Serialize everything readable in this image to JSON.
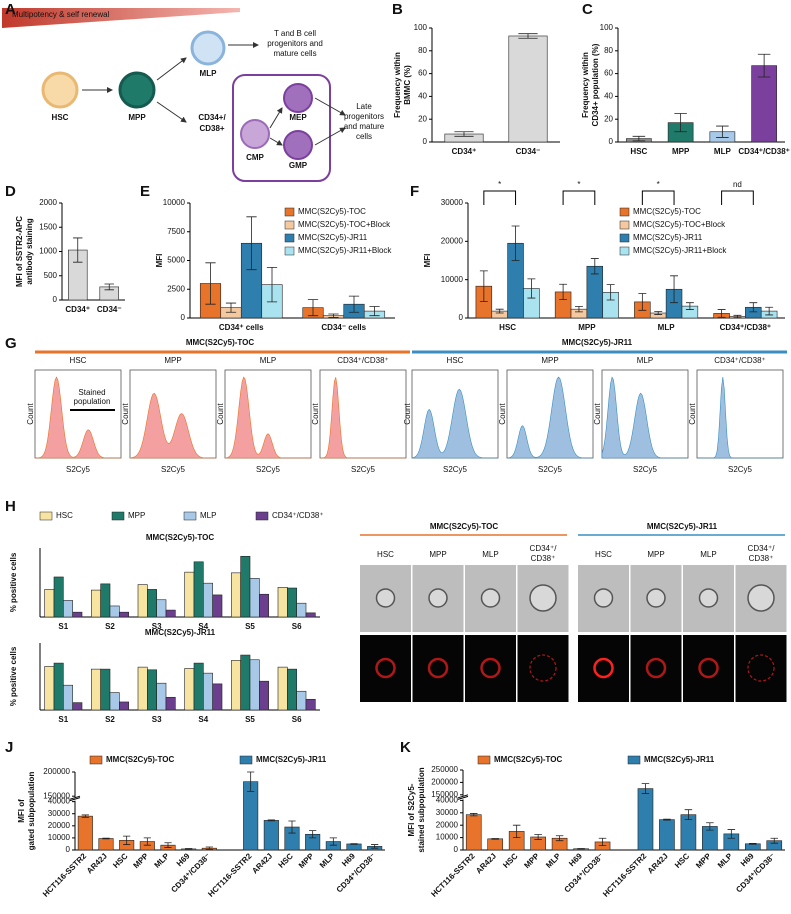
{
  "panel_labels": [
    "A",
    "B",
    "C",
    "D",
    "E",
    "F",
    "G",
    "H",
    "J",
    "K"
  ],
  "diagram": {
    "gradient_label": "Multipotency & self renewal",
    "hsc": "HSC",
    "mpp": "MPP",
    "mlp": "MLP",
    "mlp_fate": [
      "T and B cell",
      "progenitors and",
      "mature cells"
    ],
    "cd34_cd38": [
      "CD34+/",
      "CD38+"
    ],
    "cmp": "CMP",
    "mep": "MEP",
    "gmp": "GMP",
    "late_fate": [
      "Late",
      "progenitors",
      "and mature",
      "cells"
    ]
  },
  "chart_data": [
    {
      "type": "bar",
      "ylabel": [
        "Frequency within",
        "BMMC (%)"
      ],
      "categories": [
        "CD34⁺",
        "CD34⁻"
      ],
      "values": [
        7,
        93
      ],
      "errors": [
        2,
        2
      ],
      "colors": [
        "#d9d9d9",
        "#d9d9d9"
      ],
      "ylim": [
        0,
        100
      ],
      "yticks": [
        0,
        20,
        40,
        60,
        80,
        100
      ]
    },
    {
      "type": "bar",
      "ylabel": [
        "Frequency within",
        "CD34+ population (%)"
      ],
      "categories": [
        "HSC",
        "MPP",
        "MLP",
        "CD34⁺/CD38⁺"
      ],
      "values": [
        3,
        17,
        9,
        67
      ],
      "errors": [
        2,
        8,
        5,
        10
      ],
      "colors": [
        "#8a8a8a",
        "#1f7a6a",
        "#a8c8e8",
        "#7b3f9e"
      ],
      "ylim": [
        0,
        100
      ],
      "yticks": [
        0,
        20,
        40,
        60,
        80,
        100
      ]
    },
    {
      "type": "bar",
      "ylabel": [
        "MFI of SSTR2-APC",
        "antibody staining"
      ],
      "categories": [
        "CD34⁺",
        "CD34⁻"
      ],
      "values": [
        1030,
        270
      ],
      "errors": [
        250,
        60
      ],
      "colors": [
        "#d9d9d9",
        "#d9d9d9"
      ],
      "ylim": [
        0,
        2000
      ],
      "yticks": [
        0,
        500,
        1000,
        1500,
        2000
      ]
    },
    {
      "type": "bar",
      "ylabel": [
        "MFI"
      ],
      "categories": [
        "CD34⁺ cells",
        "CD34⁻ cells"
      ],
      "series": [
        {
          "name": "MMC(S2Cy5)-TOC",
          "color": "#e8732a",
          "values": [
            3000,
            900
          ],
          "errors": [
            1800,
            700
          ]
        },
        {
          "name": "MMC(S2Cy5)-TOC+Block",
          "color": "#f5c9a0",
          "values": [
            900,
            200
          ],
          "errors": [
            400,
            150
          ]
        },
        {
          "name": "MMC(S2Cy5)-JR11",
          "color": "#2f7fae",
          "values": [
            6500,
            1200
          ],
          "errors": [
            2300,
            700
          ]
        },
        {
          "name": "MMC(S2Cy5)-JR11+Block",
          "color": "#a9e3f0",
          "values": [
            2900,
            600
          ],
          "errors": [
            1500,
            400
          ]
        }
      ],
      "ylim": [
        0,
        10000
      ],
      "yticks": [
        0,
        2500,
        5000,
        7500,
        10000
      ]
    },
    {
      "type": "bar",
      "ylabel": [
        "MFI"
      ],
      "categories": [
        "HSC",
        "MPP",
        "MLP",
        "CD34⁺/CD38⁺"
      ],
      "series": [
        {
          "name": "MMC(S2Cy5)-TOC",
          "color": "#e8732a",
          "values": [
            8300,
            6800,
            4200,
            1200
          ],
          "errors": [
            4000,
            2000,
            2200,
            1000
          ]
        },
        {
          "name": "MMC(S2Cy5)-TOC+Block",
          "color": "#f5c9a0",
          "values": [
            1800,
            2300,
            1300,
            400
          ],
          "errors": [
            500,
            700,
            400,
            300
          ]
        },
        {
          "name": "MMC(S2Cy5)-JR11",
          "color": "#2f7fae",
          "values": [
            19500,
            13500,
            7500,
            2800
          ],
          "errors": [
            4500,
            2000,
            3500,
            1200
          ]
        },
        {
          "name": "MMC(S2Cy5)-JR11+Block",
          "color": "#a9e3f0",
          "values": [
            7700,
            6700,
            3100,
            1800
          ],
          "errors": [
            2500,
            2000,
            900,
            1000
          ]
        }
      ],
      "annotations": [
        "*",
        "*",
        "*",
        "nd"
      ],
      "ylim": [
        0,
        30000
      ],
      "yticks": [
        0,
        10000,
        20000,
        30000
      ]
    },
    {
      "type": "bar",
      "title": "MMC(S2Cy5)-TOC",
      "ylabel": [
        "% positive cells"
      ],
      "categories": [
        "S1",
        "S2",
        "S3",
        "S4",
        "S5",
        "S6"
      ],
      "series": [
        {
          "name": "HSC",
          "color": "#f7e4a0",
          "values": [
            40,
            39,
            47,
            65,
            64,
            43
          ]
        },
        {
          "name": "MPP",
          "color": "#1f7a6a",
          "values": [
            58,
            48,
            40,
            80,
            88,
            42
          ]
        },
        {
          "name": "MLP",
          "color": "#a8c8e8",
          "values": [
            24,
            16,
            25,
            49,
            56,
            20
          ]
        },
        {
          "name": "CD34⁺/CD38⁺",
          "color": "#6b3f8e",
          "values": [
            7,
            7,
            10,
            32,
            33,
            6
          ]
        }
      ],
      "ylim": [
        0,
        100
      ]
    },
    {
      "type": "bar",
      "title": "MMC(S2Cy5)-JR11",
      "ylabel": [
        "% positive cells"
      ],
      "categories": [
        "S1",
        "S2",
        "S3",
        "S4",
        "S5",
        "S6"
      ],
      "series": [
        {
          "name": "HSC",
          "color": "#f7e4a0",
          "values": [
            65,
            61,
            64,
            62,
            74,
            64
          ]
        },
        {
          "name": "MPP",
          "color": "#1f7a6a",
          "values": [
            70,
            61,
            60,
            70,
            82,
            61
          ]
        },
        {
          "name": "MLP",
          "color": "#a8c8e8",
          "values": [
            37,
            26,
            40,
            55,
            75,
            28
          ]
        },
        {
          "name": "CD34⁺/CD38⁺",
          "color": "#6b3f8e",
          "values": [
            11,
            12,
            19,
            39,
            43,
            16
          ]
        }
      ],
      "ylim": [
        0,
        100
      ]
    },
    {
      "type": "bar",
      "group_by": "series",
      "ylabel": [
        "MFI of",
        "gated subpopulation"
      ],
      "categories": [
        "HCT116-SSTR2",
        "AR42J",
        "HSC",
        "MPP",
        "MLP",
        "H69",
        "CD34⁺/CD38⁻"
      ],
      "series": [
        {
          "name": "MMC(S2Cy5)-TOC",
          "color": "#e8732a",
          "values": [
            28000,
            9500,
            8000,
            7000,
            4000,
            900,
            1500
          ],
          "errors": [
            1000,
            300,
            3500,
            3000,
            2000,
            300,
            1000
          ]
        },
        {
          "name": "MMC(S2Cy5)-JR11",
          "color": "#2f7fae",
          "values": [
            180000,
            24500,
            19000,
            13000,
            7000,
            5000,
            3000
          ],
          "errors": [
            20000,
            400,
            5000,
            3000,
            3000,
            300,
            1500
          ]
        }
      ],
      "ylim": [
        0,
        200000
      ],
      "ybreak": [
        40000,
        150000
      ],
      "yticks": [
        0,
        10000,
        20000,
        30000,
        40000,
        150000,
        200000
      ]
    },
    {
      "type": "bar",
      "group_by": "series",
      "ylabel": [
        "MFI of S2Cy5-",
        "stained subpopulation"
      ],
      "categories": [
        "HCT116-SSTR2",
        "AR42J",
        "HSC",
        "MPP",
        "MLP",
        "H69",
        "CD34⁺/CD38⁻"
      ],
      "series": [
        {
          "name": "MMC(S2Cy5)-TOC",
          "color": "#e8732a",
          "values": [
            28500,
            9000,
            15000,
            10500,
            9500,
            1000,
            6500
          ],
          "errors": [
            1000,
            300,
            5000,
            2000,
            2000,
            200,
            3000
          ]
        },
        {
          "name": "MMC(S2Cy5)-JR11",
          "color": "#2f7fae",
          "values": [
            175000,
            24500,
            28500,
            19000,
            13000,
            5000,
            7500
          ],
          "errors": [
            20000,
            400,
            4000,
            3000,
            3500,
            300,
            2000
          ]
        }
      ],
      "ylim": [
        0,
        250000
      ],
      "ybreak": [
        40000,
        150000
      ],
      "yticks": [
        0,
        10000,
        20000,
        30000,
        40000,
        150000,
        200000,
        250000
      ]
    }
  ],
  "flow": {
    "groups": [
      {
        "title": "MMC(S2Cy5)-TOC",
        "color": "#e8732a",
        "fill": "#f4a0a0"
      },
      {
        "title": "MMC(S2Cy5)-JR11",
        "color": "#3b8fc0",
        "fill": "#9fbfe0"
      }
    ],
    "populations": [
      "HSC",
      "MPP",
      "MLP",
      "CD34⁺/CD38⁺"
    ],
    "x_label": "S2Cy5",
    "y_label": "Count",
    "gate_label": [
      "Stained",
      "population"
    ]
  },
  "imaging": {
    "groups": [
      "MMC(S2Cy5)-TOC",
      "MMC(S2Cy5)-JR11"
    ],
    "populations": [
      [
        "HSC"
      ],
      [
        "MPP"
      ],
      [
        "MLP"
      ],
      [
        "CD34⁺/",
        "CD38⁺"
      ]
    ]
  }
}
